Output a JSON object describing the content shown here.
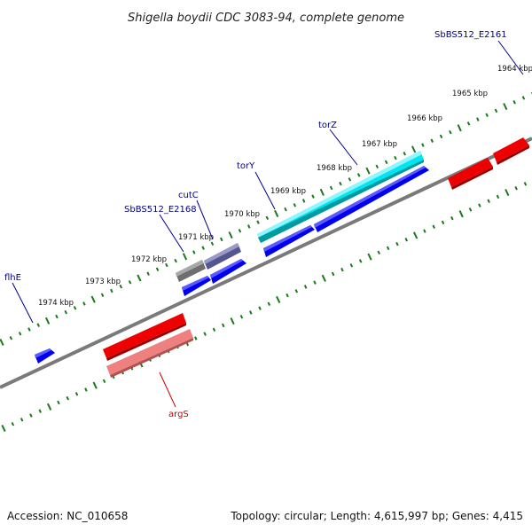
{
  "title": "Shigella boydii CDC 3083-94, complete genome",
  "footer": {
    "accession": "Accession: NC_010658",
    "summary": "Topology: circular; Length: 4,615,997 bp; Genes: 4,415"
  },
  "kbp_labels": [
    "1964 kbp",
    "1965 kbp",
    "1966 kbp",
    "1967 kbp",
    "1968 kbp",
    "1969 kbp",
    "1970 kbp",
    "1971 kbp",
    "1972 kbp",
    "1973 kbp",
    "1974 kbp"
  ],
  "genes": [
    {
      "name": "SbBS512_E2161",
      "color": "#00008b"
    },
    {
      "name": "torZ",
      "color": "#00008b"
    },
    {
      "name": "torY",
      "color": "#00008b"
    },
    {
      "name": "cutC",
      "color": "#00008b"
    },
    {
      "name": "SbBS512_E2168",
      "color": "#00008b"
    },
    {
      "name": "flhE",
      "color": "#00008b"
    },
    {
      "name": "argS",
      "color": "#cc0000"
    }
  ],
  "colors": {
    "backbone": "#7a7a7a",
    "ticks": "#1a7a1a",
    "forward_cds": "#0000ee",
    "reverse_cds": "#ee0000",
    "torZ_block": "#00e5ee",
    "cutC_block": "#55558f",
    "grey_block": "#6e6e6e",
    "argS_block": "#ee8080"
  }
}
